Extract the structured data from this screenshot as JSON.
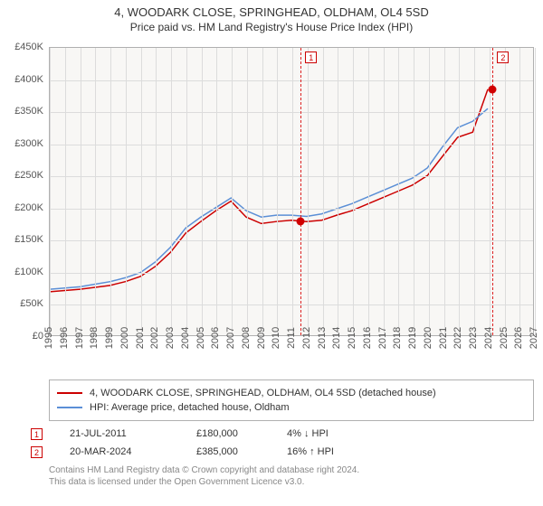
{
  "title": "4, WOODARK CLOSE, SPRINGHEAD, OLDHAM, OL4 5SD",
  "subtitle": "Price paid vs. HM Land Registry's House Price Index (HPI)",
  "chart": {
    "type": "line",
    "background_color": "#f8f7f5",
    "border_color": "#b0b0b0",
    "grid_color": "#dcdcdc",
    "ylim": [
      0,
      450000
    ],
    "ytick_step": 50000,
    "y_labels": [
      "£0",
      "£50K",
      "£100K",
      "£150K",
      "£200K",
      "£250K",
      "£300K",
      "£350K",
      "£400K",
      "£450K"
    ],
    "xlim": [
      1995,
      2027
    ],
    "x_labels": [
      "1995",
      "1996",
      "1997",
      "1998",
      "1999",
      "2000",
      "2001",
      "2002",
      "2003",
      "2004",
      "2005",
      "2006",
      "2007",
      "2008",
      "2009",
      "2010",
      "2011",
      "2012",
      "2013",
      "2014",
      "2015",
      "2016",
      "2017",
      "2018",
      "2019",
      "2020",
      "2021",
      "2022",
      "2023",
      "2024",
      "2025",
      "2026",
      "2027"
    ],
    "label_fontsize": 11,
    "label_color": "#555555",
    "series": [
      {
        "name": "price_paid",
        "label": "4, WOODARK CLOSE, SPRINGHEAD, OLDHAM, OL4 5SD (detached house)",
        "color": "#cc0000",
        "line_width": 1.5,
        "points": [
          [
            1995,
            68000
          ],
          [
            1996,
            70000
          ],
          [
            1997,
            72000
          ],
          [
            1998,
            75000
          ],
          [
            1999,
            78000
          ],
          [
            2000,
            84000
          ],
          [
            2001,
            92000
          ],
          [
            2002,
            108000
          ],
          [
            2003,
            130000
          ],
          [
            2004,
            160000
          ],
          [
            2005,
            178000
          ],
          [
            2006,
            195000
          ],
          [
            2007,
            210000
          ],
          [
            2008,
            185000
          ],
          [
            2009,
            175000
          ],
          [
            2010,
            178000
          ],
          [
            2011,
            180000
          ],
          [
            2012,
            178000
          ],
          [
            2013,
            180000
          ],
          [
            2014,
            188000
          ],
          [
            2015,
            195000
          ],
          [
            2016,
            205000
          ],
          [
            2017,
            215000
          ],
          [
            2018,
            225000
          ],
          [
            2019,
            235000
          ],
          [
            2020,
            250000
          ],
          [
            2021,
            280000
          ],
          [
            2022,
            310000
          ],
          [
            2023,
            318000
          ],
          [
            2024,
            385000
          ]
        ]
      },
      {
        "name": "hpi",
        "label": "HPI: Average price, detached house, Oldham",
        "color": "#5b8fd6",
        "line_width": 1.5,
        "points": [
          [
            1995,
            72000
          ],
          [
            1996,
            74000
          ],
          [
            1997,
            76000
          ],
          [
            1998,
            80000
          ],
          [
            1999,
            84000
          ],
          [
            2000,
            90000
          ],
          [
            2001,
            98000
          ],
          [
            2002,
            115000
          ],
          [
            2003,
            138000
          ],
          [
            2004,
            168000
          ],
          [
            2005,
            185000
          ],
          [
            2006,
            200000
          ],
          [
            2007,
            215000
          ],
          [
            2008,
            195000
          ],
          [
            2009,
            185000
          ],
          [
            2010,
            188000
          ],
          [
            2011,
            188000
          ],
          [
            2012,
            186000
          ],
          [
            2013,
            190000
          ],
          [
            2014,
            198000
          ],
          [
            2015,
            206000
          ],
          [
            2016,
            216000
          ],
          [
            2017,
            226000
          ],
          [
            2018,
            236000
          ],
          [
            2019,
            246000
          ],
          [
            2020,
            262000
          ],
          [
            2021,
            295000
          ],
          [
            2022,
            325000
          ],
          [
            2023,
            335000
          ],
          [
            2024,
            355000
          ]
        ]
      }
    ],
    "events": [
      {
        "n": "1",
        "x": 2011.55,
        "marker_y": 180000
      },
      {
        "n": "2",
        "x": 2024.22,
        "marker_y": 385000
      }
    ],
    "event_line_color": "#d22",
    "marker_color": "#d00000"
  },
  "legend": {
    "border_color": "#b0b0b0",
    "fontsize": 11
  },
  "events_table": [
    {
      "n": "1",
      "date": "21-JUL-2011",
      "price": "£180,000",
      "delta": "4% ↓ HPI"
    },
    {
      "n": "2",
      "date": "20-MAR-2024",
      "price": "£385,000",
      "delta": "16% ↑ HPI"
    }
  ],
  "attribution": {
    "line1": "Contains HM Land Registry data © Crown copyright and database right 2024.",
    "line2": "This data is licensed under the Open Government Licence v3.0.",
    "color": "#888888"
  }
}
